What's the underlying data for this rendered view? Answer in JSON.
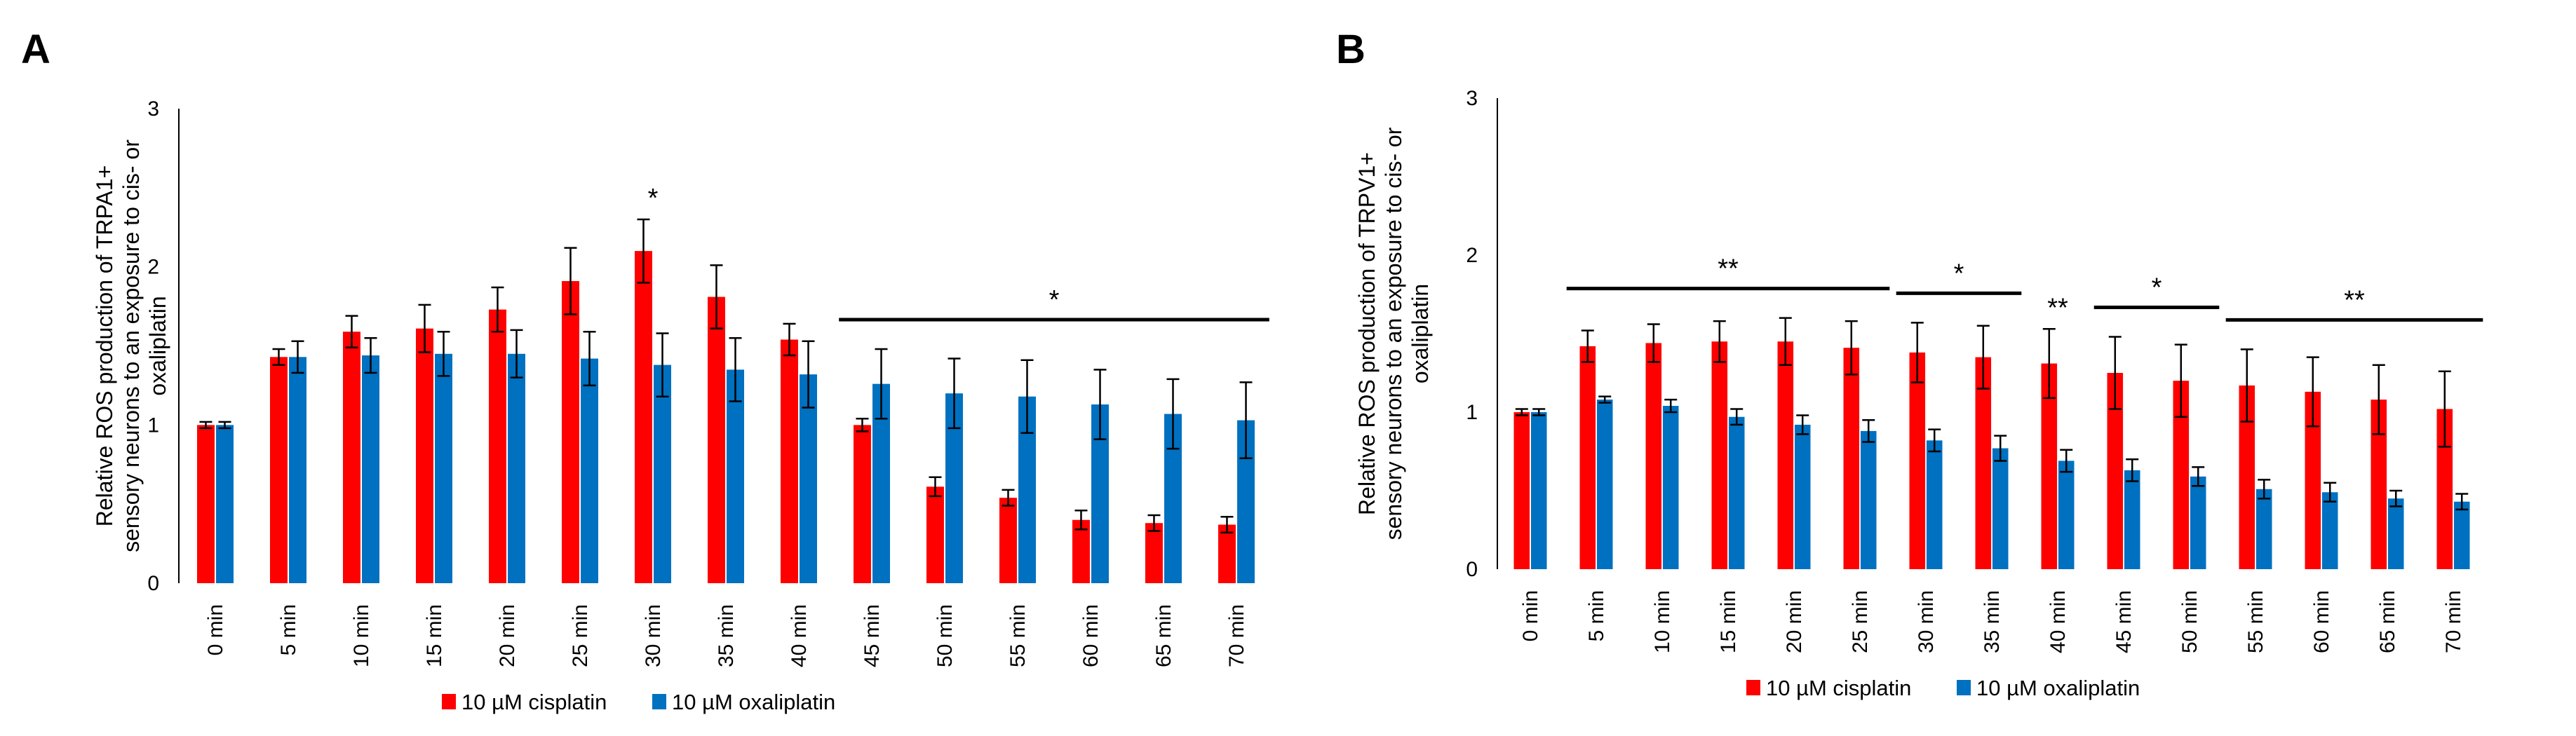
{
  "chart_data": [
    {
      "panel_label": "A",
      "type": "bar",
      "ylabel_lines": [
        "Relative ROS production of TRPA1+",
        "sensory neurons to an exposure to cis- or",
        "oxaliplatin"
      ],
      "ylim": [
        0,
        3
      ],
      "yticks": [
        "0",
        "1",
        "2",
        "3"
      ],
      "grid": false,
      "categories": [
        "0 min",
        "5 min",
        "10 min",
        "15 min",
        "20 min",
        "25 min",
        "30 min",
        "35 min",
        "40 min",
        "45 min",
        "50 min",
        "55 min",
        "60 min",
        "65 min",
        "70 min"
      ],
      "series": [
        {
          "name": "10 µM cisplatin",
          "color": "#ff0000",
          "values": [
            1.0,
            1.43,
            1.59,
            1.61,
            1.73,
            1.91,
            2.1,
            1.81,
            1.54,
            1.0,
            0.61,
            0.54,
            0.4,
            0.38,
            0.37
          ],
          "errors": [
            0.02,
            0.05,
            0.1,
            0.15,
            0.14,
            0.21,
            0.2,
            0.2,
            0.1,
            0.04,
            0.06,
            0.05,
            0.06,
            0.05,
            0.05
          ]
        },
        {
          "name": "10 µM oxaliplatin",
          "color": "#0070c0",
          "values": [
            1.0,
            1.43,
            1.44,
            1.45,
            1.45,
            1.42,
            1.38,
            1.35,
            1.32,
            1.26,
            1.2,
            1.18,
            1.13,
            1.07,
            1.03
          ],
          "errors": [
            0.02,
            0.1,
            0.11,
            0.14,
            0.15,
            0.17,
            0.2,
            0.2,
            0.21,
            0.22,
            0.22,
            0.23,
            0.22,
            0.22,
            0.24
          ]
        }
      ],
      "annotations": [
        {
          "text": "*",
          "category": "30 min"
        },
        {
          "text": "*",
          "line_from": "45 min",
          "line_to": "70 min"
        }
      ],
      "legend": "bottom"
    },
    {
      "panel_label": "B",
      "type": "bar",
      "ylabel_lines": [
        "Relative ROS production of TRPV1+",
        "sensory neurons to an exposure to cis- or",
        "oxaliplatin"
      ],
      "ylim": [
        0,
        3
      ],
      "yticks": [
        "0",
        "1",
        "2",
        "3"
      ],
      "grid": false,
      "categories": [
        "0 min",
        "5 min",
        "10 min",
        "15 min",
        "20 min",
        "25 min",
        "30 min",
        "35 min",
        "40 min",
        "45 min",
        "50 min",
        "55 min",
        "60 min",
        "65 min",
        "70 min"
      ],
      "series": [
        {
          "name": "10 µM cisplatin",
          "color": "#ff0000",
          "values": [
            1.0,
            1.42,
            1.44,
            1.45,
            1.45,
            1.41,
            1.38,
            1.35,
            1.31,
            1.25,
            1.2,
            1.17,
            1.13,
            1.08,
            1.02
          ],
          "errors": [
            0.02,
            0.1,
            0.12,
            0.13,
            0.15,
            0.17,
            0.19,
            0.2,
            0.22,
            0.23,
            0.23,
            0.23,
            0.22,
            0.22,
            0.24
          ]
        },
        {
          "name": "10 µM oxaliplatin",
          "color": "#0070c0",
          "values": [
            1.0,
            1.08,
            1.04,
            0.97,
            0.92,
            0.88,
            0.82,
            0.77,
            0.69,
            0.63,
            0.59,
            0.51,
            0.49,
            0.45,
            0.43
          ],
          "errors": [
            0.02,
            0.02,
            0.04,
            0.05,
            0.06,
            0.07,
            0.07,
            0.08,
            0.07,
            0.07,
            0.06,
            0.06,
            0.06,
            0.05,
            0.05
          ]
        }
      ],
      "annotations": [
        {
          "text": "**",
          "line_from": "5 min",
          "line_to": "25 min"
        },
        {
          "text": "*",
          "line_from": "30 min",
          "line_to": "35 min"
        },
        {
          "text": "**",
          "category": "40 min"
        },
        {
          "text": "*",
          "line_from": "45 min",
          "line_to": "50 min"
        },
        {
          "text": "**",
          "line_from": "55 min",
          "line_to": "70 min"
        }
      ],
      "legend": "bottom"
    }
  ]
}
